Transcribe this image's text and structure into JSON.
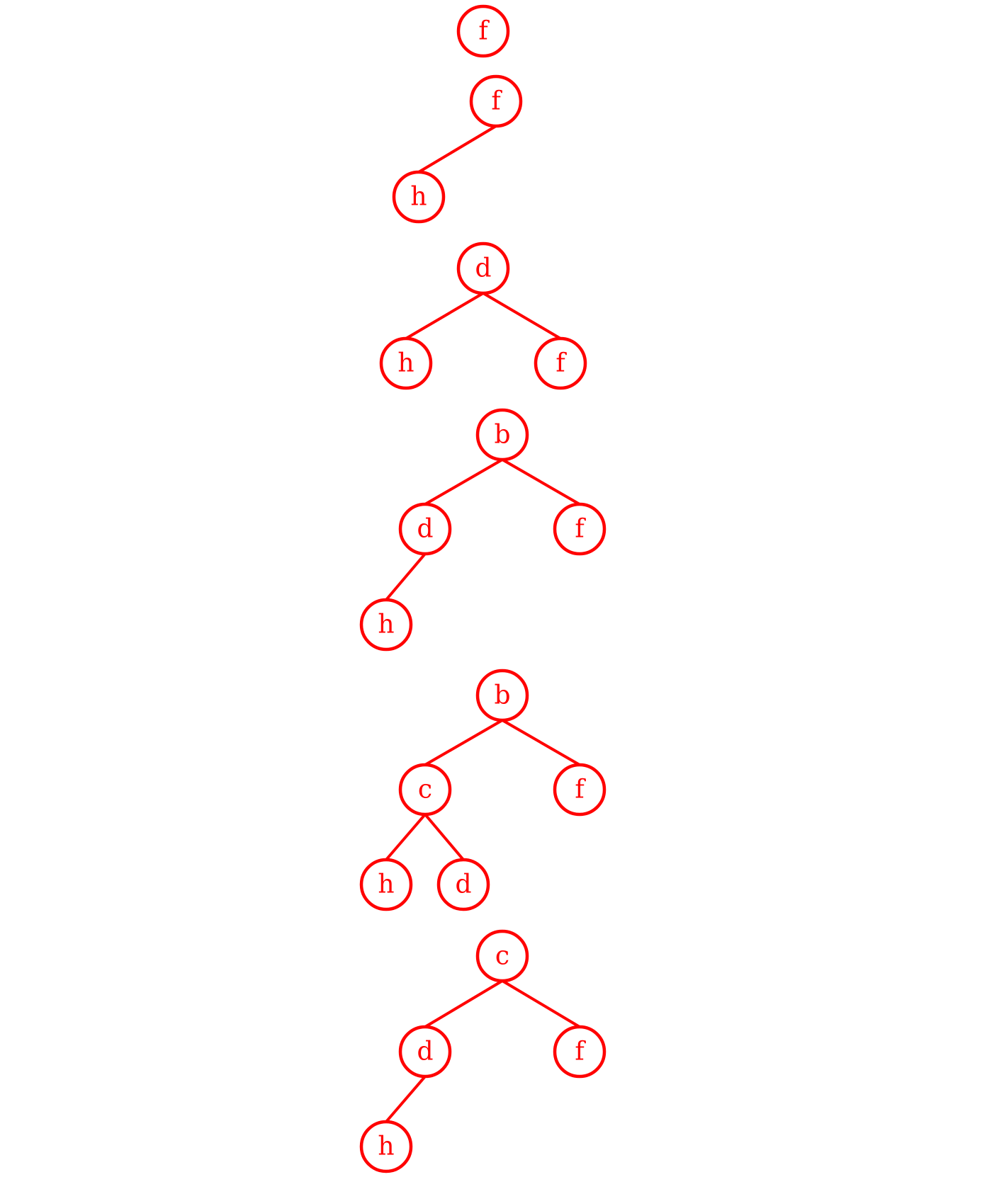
{
  "colors": {
    "accent": "#ff0000",
    "background": "#ffffff"
  },
  "trees": [
    {
      "nodes": [
        {
          "id": "r",
          "label": "f"
        }
      ],
      "edges": []
    },
    {
      "nodes": [
        {
          "id": "r",
          "label": "f"
        },
        {
          "id": "l",
          "label": "h"
        }
      ],
      "edges": [
        [
          "r",
          "l"
        ]
      ]
    },
    {
      "nodes": [
        {
          "id": "r",
          "label": "d"
        },
        {
          "id": "l",
          "label": "h"
        },
        {
          "id": "rt",
          "label": "f"
        }
      ],
      "edges": [
        [
          "r",
          "l"
        ],
        [
          "r",
          "rt"
        ]
      ]
    },
    {
      "nodes": [
        {
          "id": "r",
          "label": "b"
        },
        {
          "id": "l",
          "label": "d"
        },
        {
          "id": "rt",
          "label": "f"
        },
        {
          "id": "ll",
          "label": "h"
        }
      ],
      "edges": [
        [
          "r",
          "l"
        ],
        [
          "r",
          "rt"
        ],
        [
          "l",
          "ll"
        ]
      ]
    },
    {
      "nodes": [
        {
          "id": "r",
          "label": "b"
        },
        {
          "id": "l",
          "label": "c"
        },
        {
          "id": "rt",
          "label": "f"
        },
        {
          "id": "ll",
          "label": "h"
        },
        {
          "id": "lr",
          "label": "d"
        }
      ],
      "edges": [
        [
          "r",
          "l"
        ],
        [
          "r",
          "rt"
        ],
        [
          "l",
          "ll"
        ],
        [
          "l",
          "lr"
        ]
      ]
    },
    {
      "nodes": [
        {
          "id": "r",
          "label": "c"
        },
        {
          "id": "l",
          "label": "d"
        },
        {
          "id": "rt",
          "label": "f"
        },
        {
          "id": "ll",
          "label": "h"
        }
      ],
      "edges": [
        [
          "r",
          "l"
        ],
        [
          "r",
          "rt"
        ],
        [
          "l",
          "ll"
        ]
      ]
    }
  ]
}
